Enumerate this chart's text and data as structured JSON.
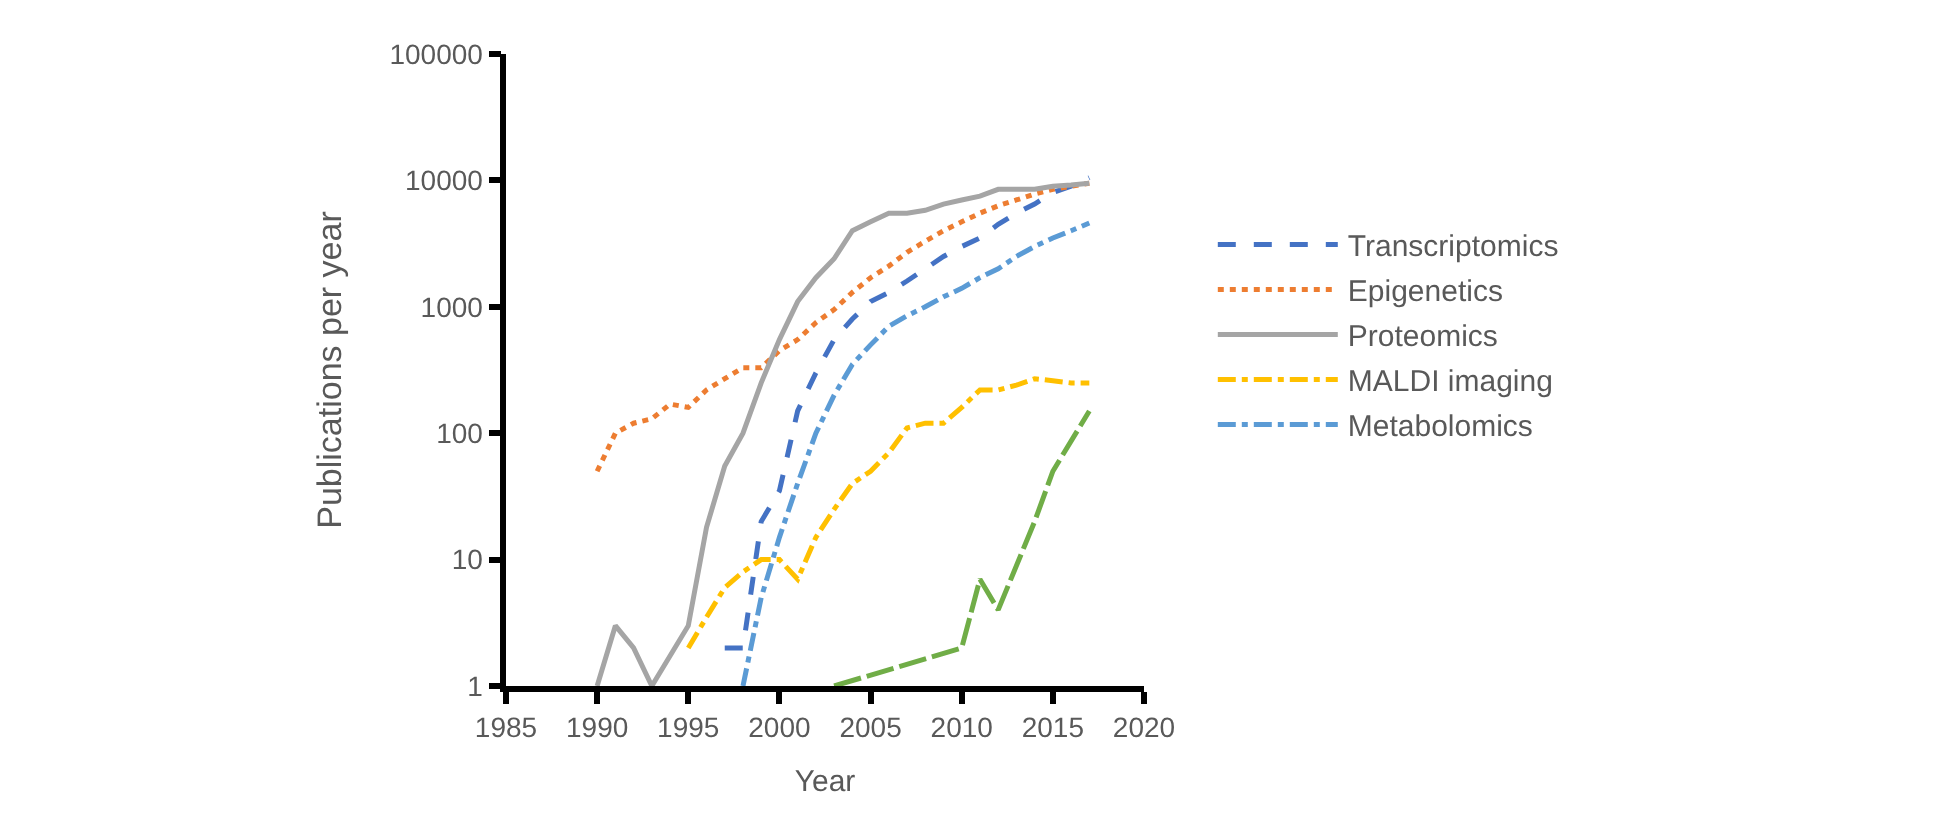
{
  "chart_data": {
    "type": "line",
    "xlabel": "Year",
    "ylabel": "Publications per year",
    "log": "y",
    "legend": "right",
    "marker": "none",
    "xlim": [
      1985,
      2020
    ],
    "xticks": [
      1985,
      1990,
      1995,
      2000,
      2005,
      2010,
      2015,
      2020
    ],
    "ylim": [
      1,
      100000
    ],
    "yticks": [
      1,
      10,
      100,
      1000,
      10000,
      100000
    ],
    "series": [
      {
        "name": "Transcriptomics",
        "color": "#4472c4",
        "line_style": "dashed",
        "x": [
          1997,
          1998,
          1999,
          2000,
          2001,
          2002,
          2003,
          2004,
          2005,
          2006,
          2007,
          2008,
          2009,
          2010,
          2011,
          2012,
          2013,
          2014,
          2015,
          2016,
          2017
        ],
        "values": [
          2,
          2,
          20,
          35,
          150,
          300,
          550,
          800,
          1100,
          1300,
          1600,
          2000,
          2500,
          3000,
          3500,
          4500,
          5500,
          6500,
          8000,
          9000,
          10500
        ]
      },
      {
        "name": "Epigenetics",
        "color": "#ed7d31",
        "line_style": "dotted",
        "x": [
          1990,
          1991,
          1992,
          1993,
          1994,
          1995,
          1996,
          1997,
          1998,
          1999,
          2000,
          2001,
          2002,
          2003,
          2004,
          2005,
          2006,
          2007,
          2008,
          2009,
          2010,
          2011,
          2012,
          2013,
          2014,
          2015,
          2016,
          2017
        ],
        "values": [
          50,
          100,
          120,
          130,
          170,
          160,
          220,
          270,
          330,
          330,
          450,
          550,
          750,
          950,
          1300,
          1700,
          2100,
          2700,
          3300,
          4000,
          4700,
          5500,
          6300,
          7000,
          7800,
          8500,
          9000,
          9500
        ]
      },
      {
        "name": "Proteomics",
        "color": "#a5a5a5",
        "line_style": "solid",
        "x": [
          1990,
          1991,
          1992,
          1993,
          1995,
          1996,
          1997,
          1998,
          1999,
          2000,
          2001,
          2002,
          2003,
          2004,
          2005,
          2006,
          2007,
          2008,
          2009,
          2010,
          2011,
          2012,
          2013,
          2014,
          2015,
          2016,
          2017
        ],
        "values": [
          1,
          3,
          2,
          1,
          3,
          18,
          55,
          100,
          250,
          550,
          1100,
          1700,
          2400,
          4000,
          4700,
          5500,
          5500,
          5800,
          6500,
          7000,
          7500,
          8500,
          8500,
          8500,
          9000,
          9200,
          9500
        ]
      },
      {
        "name": "MALDI imaging",
        "color": "#ffc000",
        "line_style": "dashdot",
        "x": [
          1995,
          1996,
          1997,
          1998,
          1999,
          2000,
          2001,
          2002,
          2003,
          2004,
          2005,
          2006,
          2007,
          2008,
          2009,
          2010,
          2011,
          2012,
          2013,
          2014,
          2015,
          2016,
          2017
        ],
        "values": [
          2,
          3.5,
          6,
          8,
          10,
          10,
          7,
          15,
          25,
          40,
          50,
          70,
          110,
          120,
          120,
          160,
          220,
          220,
          240,
          270,
          260,
          250,
          250
        ]
      },
      {
        "name": "Metabolomics",
        "color": "#5b9bd5",
        "line_style": "dashdot",
        "x": [
          1998,
          1999,
          2000,
          2001,
          2002,
          2003,
          2004,
          2005,
          2006,
          2007,
          2008,
          2009,
          2010,
          2011,
          2012,
          2013,
          2014,
          2015,
          2016,
          2017
        ],
        "values": [
          1,
          5,
          15,
          40,
          100,
          200,
          350,
          500,
          700,
          850,
          1000,
          1200,
          1400,
          1700,
          2000,
          2500,
          3000,
          3500,
          4000,
          4600
        ]
      },
      {
        "color": "#70ad47",
        "line_style": "longdash",
        "x": [
          2003,
          2010,
          2011,
          2012,
          2014,
          2015,
          2017
        ],
        "values": [
          1,
          2,
          7,
          4,
          20,
          50,
          150
        ]
      }
    ]
  }
}
